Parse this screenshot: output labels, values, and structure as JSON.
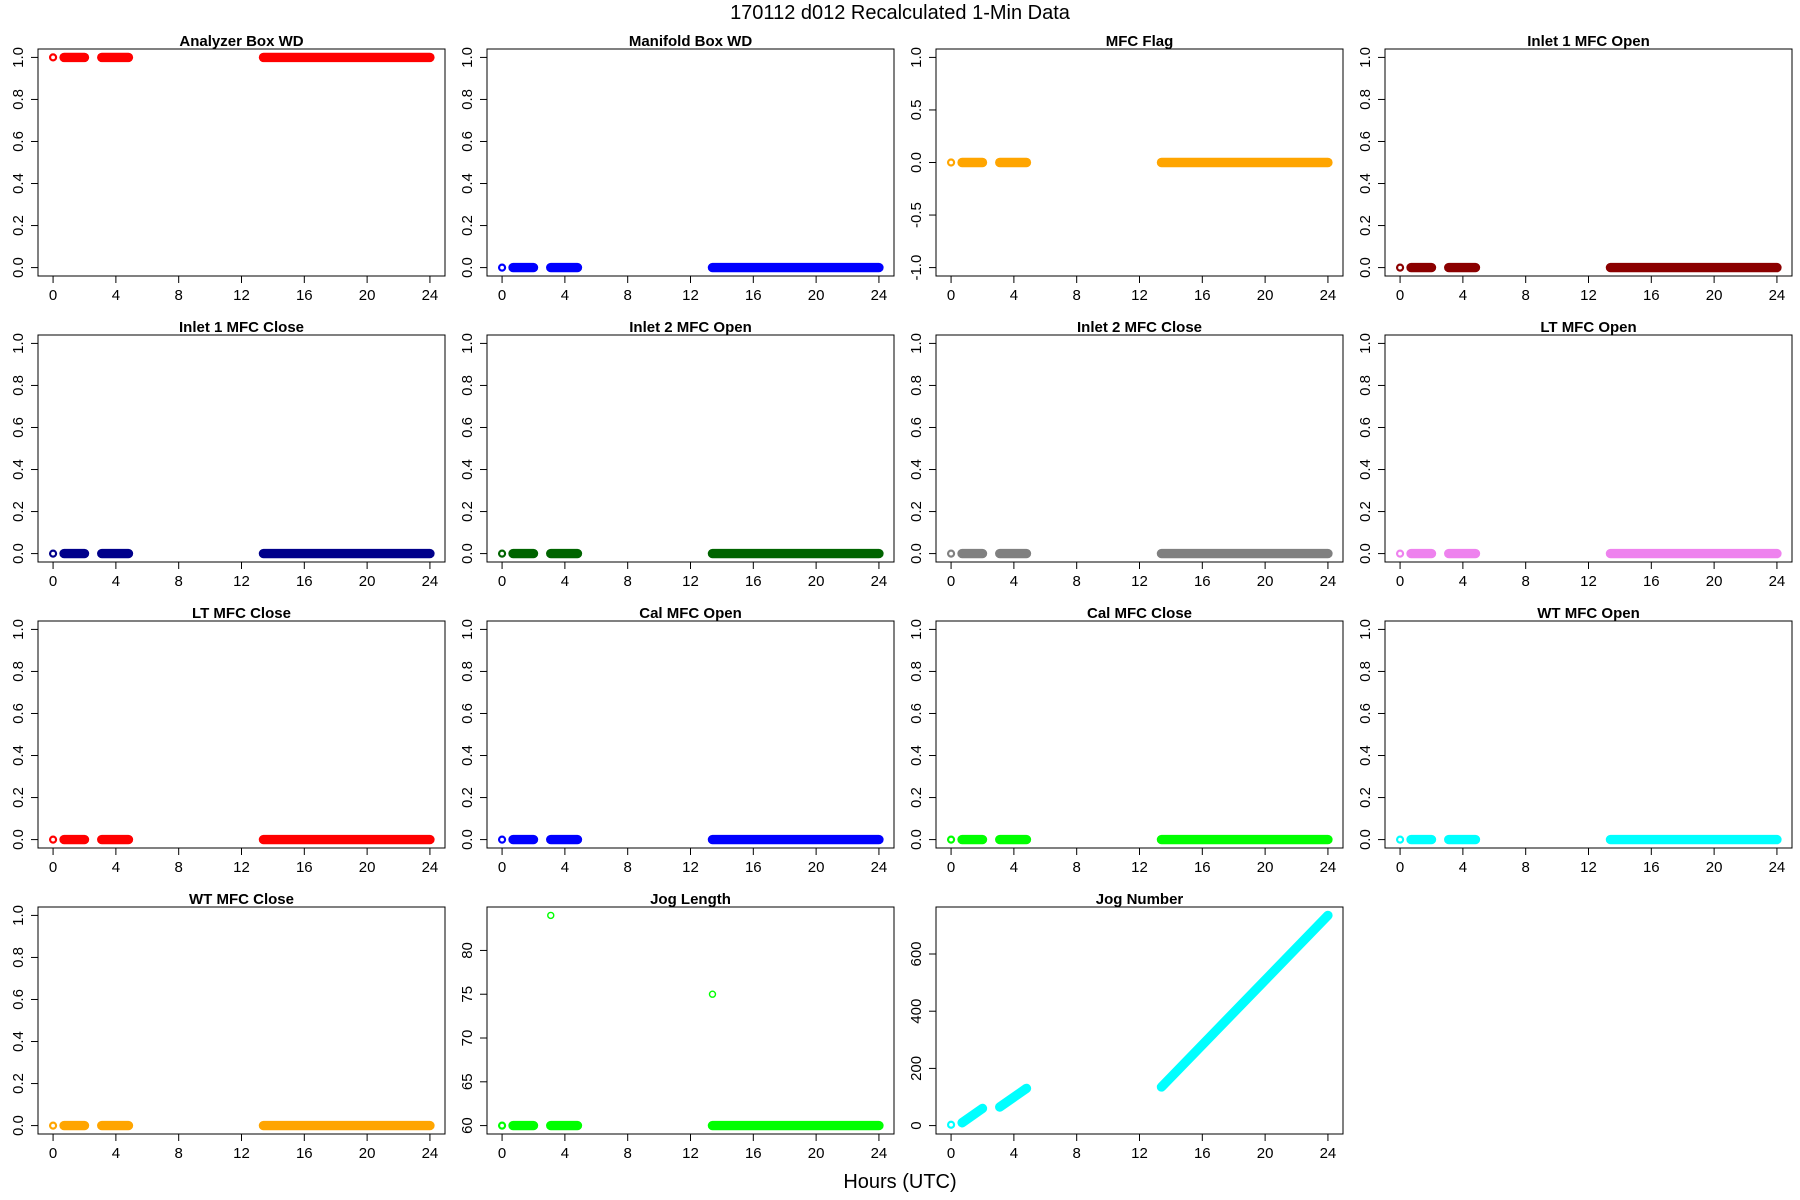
{
  "page": {
    "title": "170112   d012   Recalculated 1-Min Data",
    "xlabel": "Hours (UTC)"
  },
  "chart_data": [
    {
      "type": "scatter",
      "title": "Analyzer Box WD",
      "color": "#ff0000",
      "xlim": [
        0,
        24
      ],
      "xticks": [
        0,
        4,
        8,
        12,
        16,
        20,
        24
      ],
      "ylim": [
        0,
        1
      ],
      "yticks": [
        0,
        0.2,
        0.4,
        0.6,
        0.8,
        1
      ],
      "ytick_labels": [
        "0.0",
        "0.2",
        "0.4",
        "0.6",
        "0.8",
        "1.0"
      ],
      "segments": [
        {
          "x": [
            0,
            0.05
          ],
          "y": 1
        },
        {
          "x": [
            0.7,
            2.0
          ],
          "y": 1
        },
        {
          "x": [
            3.1,
            4.8
          ],
          "y": 1
        },
        {
          "x": [
            13.4,
            24
          ],
          "y": 1
        }
      ]
    },
    {
      "type": "scatter",
      "title": "Manifold Box WD",
      "color": "#0000ff",
      "xlim": [
        0,
        24
      ],
      "xticks": [
        0,
        4,
        8,
        12,
        16,
        20,
        24
      ],
      "ylim": [
        0,
        1
      ],
      "yticks": [
        0,
        0.2,
        0.4,
        0.6,
        0.8,
        1
      ],
      "ytick_labels": [
        "0.0",
        "0.2",
        "0.4",
        "0.6",
        "0.8",
        "1.0"
      ],
      "segments": [
        {
          "x": [
            0,
            0.05
          ],
          "y": 0
        },
        {
          "x": [
            0.7,
            2.0
          ],
          "y": 0
        },
        {
          "x": [
            3.1,
            4.8
          ],
          "y": 0
        },
        {
          "x": [
            13.4,
            24
          ],
          "y": 0
        }
      ]
    },
    {
      "type": "scatter",
      "title": "MFC Flag",
      "color": "#ffa500",
      "xlim": [
        0,
        24
      ],
      "xticks": [
        0,
        4,
        8,
        12,
        16,
        20,
        24
      ],
      "ylim": [
        -1,
        1
      ],
      "yticks": [
        -1,
        -0.5,
        0,
        0.5,
        1
      ],
      "ytick_labels": [
        "-1.0",
        "-0.5",
        "0.0",
        "0.5",
        "1.0"
      ],
      "segments": [
        {
          "x": [
            0,
            0.05
          ],
          "y": 0
        },
        {
          "x": [
            0.7,
            2.0
          ],
          "y": 0
        },
        {
          "x": [
            3.1,
            4.8
          ],
          "y": 0
        },
        {
          "x": [
            13.4,
            24
          ],
          "y": 0
        }
      ]
    },
    {
      "type": "scatter",
      "title": "Inlet 1 MFC Open",
      "color": "#8b0000",
      "xlim": [
        0,
        24
      ],
      "xticks": [
        0,
        4,
        8,
        12,
        16,
        20,
        24
      ],
      "ylim": [
        0,
        1
      ],
      "yticks": [
        0,
        0.2,
        0.4,
        0.6,
        0.8,
        1
      ],
      "ytick_labels": [
        "0.0",
        "0.2",
        "0.4",
        "0.6",
        "0.8",
        "1.0"
      ],
      "segments": [
        {
          "x": [
            0,
            0.05
          ],
          "y": 0
        },
        {
          "x": [
            0.7,
            2.0
          ],
          "y": 0
        },
        {
          "x": [
            3.1,
            4.8
          ],
          "y": 0
        },
        {
          "x": [
            13.4,
            24
          ],
          "y": 0
        }
      ]
    },
    {
      "type": "scatter",
      "title": "Inlet 1 MFC Close",
      "color": "#00008b",
      "xlim": [
        0,
        24
      ],
      "xticks": [
        0,
        4,
        8,
        12,
        16,
        20,
        24
      ],
      "ylim": [
        0,
        1
      ],
      "yticks": [
        0,
        0.2,
        0.4,
        0.6,
        0.8,
        1
      ],
      "ytick_labels": [
        "0.0",
        "0.2",
        "0.4",
        "0.6",
        "0.8",
        "1.0"
      ],
      "segments": [
        {
          "x": [
            0,
            0.05
          ],
          "y": 0
        },
        {
          "x": [
            0.7,
            2.0
          ],
          "y": 0
        },
        {
          "x": [
            3.1,
            4.8
          ],
          "y": 0
        },
        {
          "x": [
            13.4,
            24
          ],
          "y": 0
        }
      ]
    },
    {
      "type": "scatter",
      "title": "Inlet 2 MFC Open",
      "color": "#006400",
      "xlim": [
        0,
        24
      ],
      "xticks": [
        0,
        4,
        8,
        12,
        16,
        20,
        24
      ],
      "ylim": [
        0,
        1
      ],
      "yticks": [
        0,
        0.2,
        0.4,
        0.6,
        0.8,
        1
      ],
      "ytick_labels": [
        "0.0",
        "0.2",
        "0.4",
        "0.6",
        "0.8",
        "1.0"
      ],
      "segments": [
        {
          "x": [
            0,
            0.05
          ],
          "y": 0
        },
        {
          "x": [
            0.7,
            2.0
          ],
          "y": 0
        },
        {
          "x": [
            3.1,
            4.8
          ],
          "y": 0
        },
        {
          "x": [
            13.4,
            24
          ],
          "y": 0
        }
      ]
    },
    {
      "type": "scatter",
      "title": "Inlet 2 MFC Close",
      "color": "#808080",
      "xlim": [
        0,
        24
      ],
      "xticks": [
        0,
        4,
        8,
        12,
        16,
        20,
        24
      ],
      "ylim": [
        0,
        1
      ],
      "yticks": [
        0,
        0.2,
        0.4,
        0.6,
        0.8,
        1
      ],
      "ytick_labels": [
        "0.0",
        "0.2",
        "0.4",
        "0.6",
        "0.8",
        "1.0"
      ],
      "segments": [
        {
          "x": [
            0,
            0.05
          ],
          "y": 0
        },
        {
          "x": [
            0.7,
            2.0
          ],
          "y": 0
        },
        {
          "x": [
            3.1,
            4.8
          ],
          "y": 0
        },
        {
          "x": [
            13.4,
            24
          ],
          "y": 0
        }
      ]
    },
    {
      "type": "scatter",
      "title": "LT MFC Open",
      "color": "#ee82ee",
      "xlim": [
        0,
        24
      ],
      "xticks": [
        0,
        4,
        8,
        12,
        16,
        20,
        24
      ],
      "ylim": [
        0,
        1
      ],
      "yticks": [
        0,
        0.2,
        0.4,
        0.6,
        0.8,
        1
      ],
      "ytick_labels": [
        "0.0",
        "0.2",
        "0.4",
        "0.6",
        "0.8",
        "1.0"
      ],
      "segments": [
        {
          "x": [
            0,
            0.05
          ],
          "y": 0
        },
        {
          "x": [
            0.7,
            2.0
          ],
          "y": 0
        },
        {
          "x": [
            3.1,
            4.8
          ],
          "y": 0
        },
        {
          "x": [
            13.4,
            24
          ],
          "y": 0
        }
      ]
    },
    {
      "type": "scatter",
      "title": "LT MFC Close",
      "color": "#ff0000",
      "xlim": [
        0,
        24
      ],
      "xticks": [
        0,
        4,
        8,
        12,
        16,
        20,
        24
      ],
      "ylim": [
        0,
        1
      ],
      "yticks": [
        0,
        0.2,
        0.4,
        0.6,
        0.8,
        1
      ],
      "ytick_labels": [
        "0.0",
        "0.2",
        "0.4",
        "0.6",
        "0.8",
        "1.0"
      ],
      "segments": [
        {
          "x": [
            0,
            0.05
          ],
          "y": 0
        },
        {
          "x": [
            0.7,
            2.0
          ],
          "y": 0
        },
        {
          "x": [
            3.1,
            4.8
          ],
          "y": 0
        },
        {
          "x": [
            13.4,
            24
          ],
          "y": 0
        }
      ]
    },
    {
      "type": "scatter",
      "title": "Cal MFC Open",
      "color": "#0000ff",
      "xlim": [
        0,
        24
      ],
      "xticks": [
        0,
        4,
        8,
        12,
        16,
        20,
        24
      ],
      "ylim": [
        0,
        1
      ],
      "yticks": [
        0,
        0.2,
        0.4,
        0.6,
        0.8,
        1
      ],
      "ytick_labels": [
        "0.0",
        "0.2",
        "0.4",
        "0.6",
        "0.8",
        "1.0"
      ],
      "segments": [
        {
          "x": [
            0,
            0.05
          ],
          "y": 0
        },
        {
          "x": [
            0.7,
            2.0
          ],
          "y": 0
        },
        {
          "x": [
            3.1,
            4.8
          ],
          "y": 0
        },
        {
          "x": [
            13.4,
            24
          ],
          "y": 0
        }
      ]
    },
    {
      "type": "scatter",
      "title": "Cal MFC Close",
      "color": "#00ff00",
      "xlim": [
        0,
        24
      ],
      "xticks": [
        0,
        4,
        8,
        12,
        16,
        20,
        24
      ],
      "ylim": [
        0,
        1
      ],
      "yticks": [
        0,
        0.2,
        0.4,
        0.6,
        0.8,
        1
      ],
      "ytick_labels": [
        "0.0",
        "0.2",
        "0.4",
        "0.6",
        "0.8",
        "1.0"
      ],
      "segments": [
        {
          "x": [
            0,
            0.05
          ],
          "y": 0
        },
        {
          "x": [
            0.7,
            2.0
          ],
          "y": 0
        },
        {
          "x": [
            3.1,
            4.8
          ],
          "y": 0
        },
        {
          "x": [
            13.4,
            24
          ],
          "y": 0
        }
      ]
    },
    {
      "type": "scatter",
      "title": "WT MFC Open",
      "color": "#00ffff",
      "xlim": [
        0,
        24
      ],
      "xticks": [
        0,
        4,
        8,
        12,
        16,
        20,
        24
      ],
      "ylim": [
        0,
        1
      ],
      "yticks": [
        0,
        0.2,
        0.4,
        0.6,
        0.8,
        1
      ],
      "ytick_labels": [
        "0.0",
        "0.2",
        "0.4",
        "0.6",
        "0.8",
        "1.0"
      ],
      "segments": [
        {
          "x": [
            0,
            0.05
          ],
          "y": 0
        },
        {
          "x": [
            0.7,
            2.0
          ],
          "y": 0
        },
        {
          "x": [
            3.1,
            4.8
          ],
          "y": 0
        },
        {
          "x": [
            13.4,
            24
          ],
          "y": 0
        }
      ]
    },
    {
      "type": "scatter",
      "title": "WT MFC Close",
      "color": "#ffa500",
      "xlim": [
        0,
        24
      ],
      "xticks": [
        0,
        4,
        8,
        12,
        16,
        20,
        24
      ],
      "ylim": [
        0,
        1
      ],
      "yticks": [
        0,
        0.2,
        0.4,
        0.6,
        0.8,
        1
      ],
      "ytick_labels": [
        "0.0",
        "0.2",
        "0.4",
        "0.6",
        "0.8",
        "1.0"
      ],
      "segments": [
        {
          "x": [
            0,
            0.05
          ],
          "y": 0
        },
        {
          "x": [
            0.7,
            2.0
          ],
          "y": 0
        },
        {
          "x": [
            3.1,
            4.8
          ],
          "y": 0
        },
        {
          "x": [
            13.4,
            24
          ],
          "y": 0
        }
      ]
    },
    {
      "type": "scatter",
      "title": "Jog Length",
      "color": "#00ff00",
      "xlim": [
        0,
        24
      ],
      "xticks": [
        0,
        4,
        8,
        12,
        16,
        20,
        24
      ],
      "ylim": [
        60,
        84
      ],
      "yticks": [
        60,
        65,
        70,
        75,
        80
      ],
      "ytick_labels": [
        "60",
        "65",
        "70",
        "75",
        "80"
      ],
      "segments": [
        {
          "x": [
            0,
            0.05
          ],
          "y": 60
        },
        {
          "x": [
            0.7,
            2.0
          ],
          "y": 60
        },
        {
          "x": [
            3.1,
            4.8
          ],
          "y": 60
        },
        {
          "x": [
            13.4,
            24
          ],
          "y": 60
        }
      ],
      "outliers": [
        {
          "x": 3.1,
          "y": 84
        },
        {
          "x": 13.4,
          "y": 75
        }
      ]
    },
    {
      "type": "scatter",
      "title": "Jog Number",
      "color": "#00ffff",
      "xlim": [
        0,
        24
      ],
      "xticks": [
        0,
        4,
        8,
        12,
        16,
        20,
        24
      ],
      "ylim": [
        0,
        735
      ],
      "yticks": [
        0,
        200,
        400,
        600
      ],
      "ytick_labels": [
        "0",
        "200",
        "400",
        "600"
      ],
      "segments": [
        {
          "x": [
            0,
            0.05
          ],
          "y": [
            3,
            6
          ]
        },
        {
          "x": [
            0.7,
            2.0
          ],
          "y": [
            10,
            60
          ]
        },
        {
          "x": [
            3.1,
            4.8
          ],
          "y": [
            65,
            130
          ]
        },
        {
          "x": [
            13.4,
            24
          ],
          "y": [
            135,
            735
          ]
        }
      ]
    }
  ]
}
